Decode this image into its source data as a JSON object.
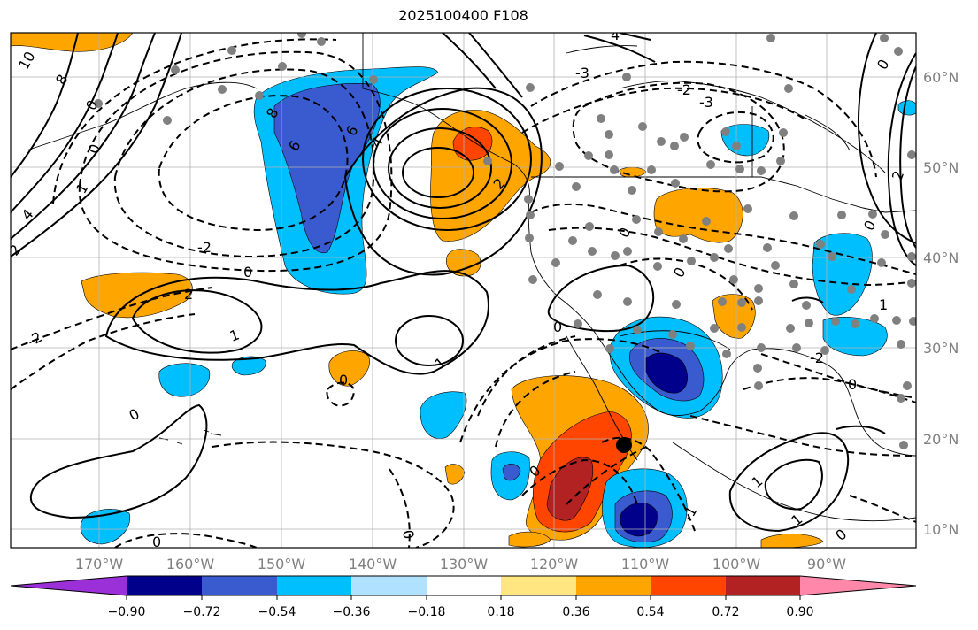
{
  "title": "2025100400 F108",
  "colors": {
    "contour": "#000000",
    "grid": "#b0b0b0",
    "stations": "#808080",
    "fill_levels": [
      "#9b30d9",
      "#00008b",
      "#3a5bd0",
      "#00bfff",
      "#b0e2ff",
      "#ffffff",
      "#ffe680",
      "#ffa500",
      "#ff4500",
      "#b22222",
      "#ff88aa"
    ]
  },
  "axes": {
    "lon_labels": [
      "170°W",
      "160°W",
      "150°W",
      "140°W",
      "130°W",
      "120°W",
      "110°W",
      "100°W",
      "90°W"
    ],
    "lat_labels": [
      "60°N",
      "50°N",
      "40°N",
      "30°N",
      "20°N",
      "10°N"
    ]
  },
  "colorbar": {
    "ticks": [
      "−0.90",
      "−0.72",
      "−0.54",
      "−0.36",
      "−0.18",
      "0.18",
      "0.36",
      "0.54",
      "0.72",
      "0.90"
    ]
  },
  "contour_labels": [
    "10",
    "8",
    "6",
    "4",
    "2",
    "0",
    "-2",
    "-4",
    "-3",
    "1",
    "-1",
    "2",
    "0",
    "1",
    "-1",
    "0",
    "0",
    "1",
    "1",
    "0",
    "0",
    "-2",
    "-1",
    "0",
    "2",
    "1",
    "-1",
    "-2",
    "-1",
    "0",
    "1",
    "-2",
    "0",
    "0",
    "0",
    "-1",
    "-1",
    "-2",
    "-2",
    "-3",
    "-1",
    "0"
  ]
}
